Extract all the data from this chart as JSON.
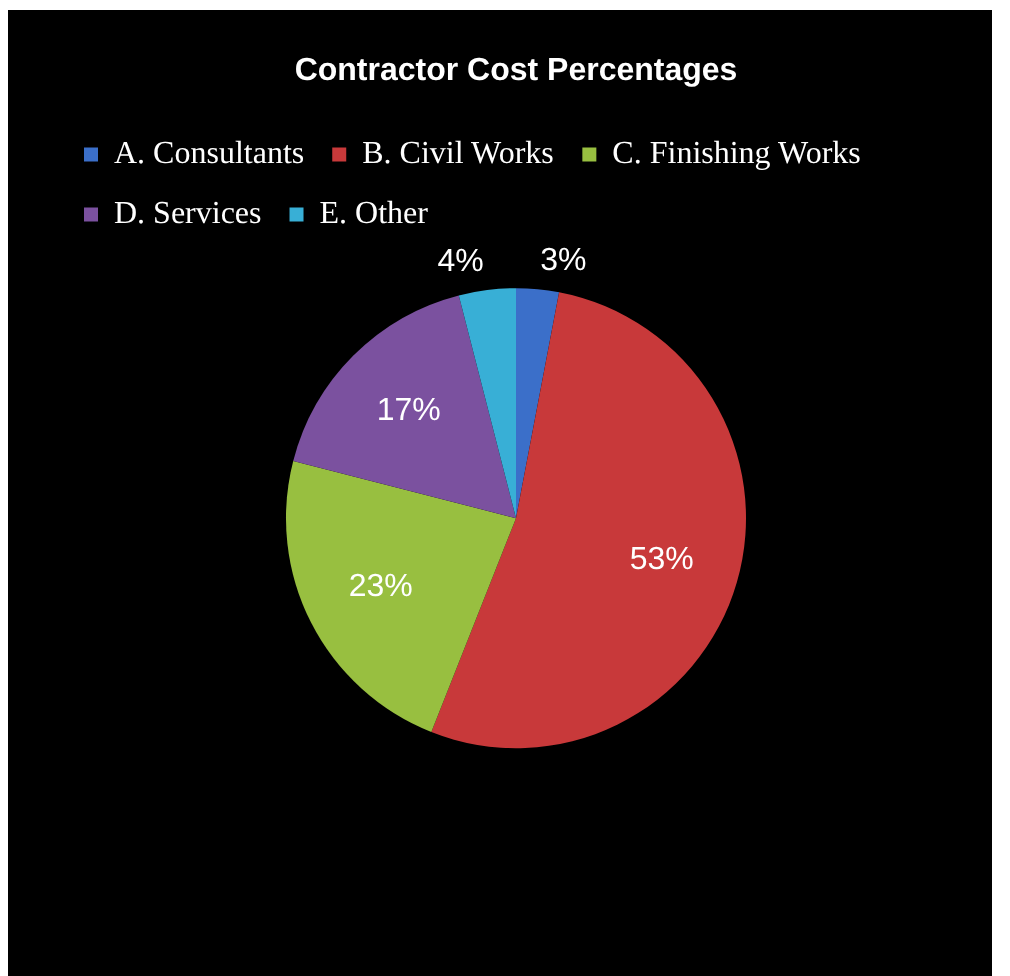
{
  "chart_data": {
    "type": "pie",
    "title": "Contractor Cost Percentages",
    "categories": [
      "A. Consultants",
      "B. Civil Works",
      "C. Finishing Works",
      "D. Services",
      "E. Other"
    ],
    "values": [
      3,
      53,
      23,
      17,
      4
    ],
    "colors": [
      "#3b6fc9",
      "#c8393a",
      "#98bf40",
      "#7b519f",
      "#38afd6"
    ],
    "value_labels": [
      "3%",
      "53%",
      "23%",
      "17%",
      "4%"
    ],
    "legend": "top"
  }
}
